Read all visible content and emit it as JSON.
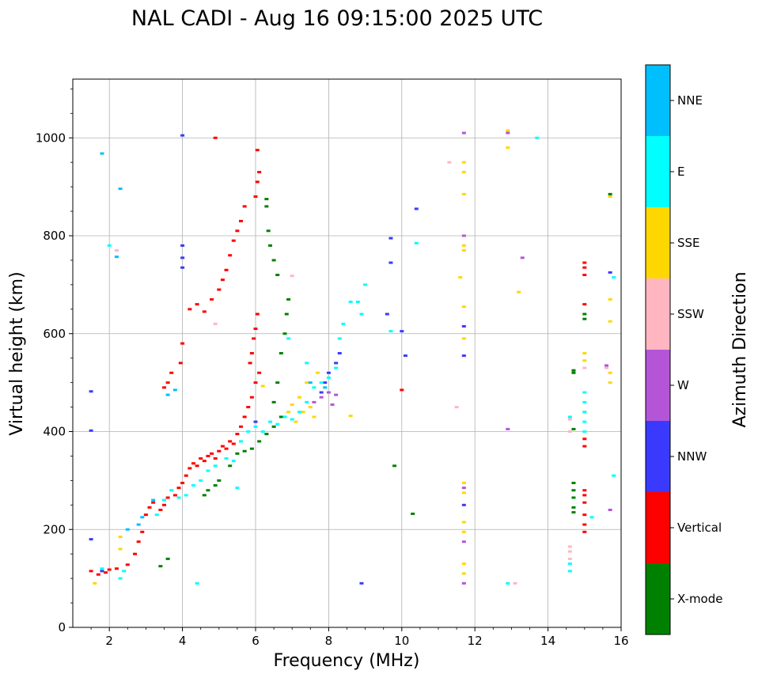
{
  "chart_data": {
    "type": "scatter",
    "title": "NAL CADI - Aug 16 09:15:00 2025 UTC",
    "xlabel": "Frequency (MHz)",
    "ylabel": "Virtual height (km)",
    "xlim": [
      1,
      16
    ],
    "ylim": [
      0,
      1120
    ],
    "xticks": [
      2,
      4,
      6,
      8,
      10,
      12,
      14,
      16
    ],
    "yticks": [
      0,
      200,
      400,
      600,
      800,
      1000
    ],
    "grid": true,
    "colorbar": {
      "title": "Azimuth Direction",
      "categories": [
        {
          "name": "X-mode",
          "color": "#008000"
        },
        {
          "name": "Vertical",
          "color": "#ff0000"
        },
        {
          "name": "NNW",
          "color": "#3a3aff"
        },
        {
          "name": "W",
          "color": "#b455d8"
        },
        {
          "name": "SSW",
          "color": "#ffb6c1"
        },
        {
          "name": "SSE",
          "color": "#ffd700"
        },
        {
          "name": "E",
          "color": "#00ffff"
        },
        {
          "name": "NNE",
          "color": "#00bfff"
        }
      ]
    },
    "series": [
      {
        "name": "Vertical",
        "points": [
          [
            1.5,
            115
          ],
          [
            1.7,
            108
          ],
          [
            1.9,
            112
          ],
          [
            2.0,
            118
          ],
          [
            2.2,
            120
          ],
          [
            2.5,
            128
          ],
          [
            2.7,
            150
          ],
          [
            2.8,
            175
          ],
          [
            2.9,
            195
          ],
          [
            3.0,
            230
          ],
          [
            3.1,
            245
          ],
          [
            3.2,
            255
          ],
          [
            3.4,
            240
          ],
          [
            3.5,
            250
          ],
          [
            3.6,
            265
          ],
          [
            3.8,
            270
          ],
          [
            3.9,
            285
          ],
          [
            4.0,
            295
          ],
          [
            4.1,
            310
          ],
          [
            4.2,
            325
          ],
          [
            4.3,
            335
          ],
          [
            4.4,
            330
          ],
          [
            4.5,
            345
          ],
          [
            4.6,
            340
          ],
          [
            4.7,
            350
          ],
          [
            4.8,
            355
          ],
          [
            4.9,
            345
          ],
          [
            5.0,
            360
          ],
          [
            5.1,
            370
          ],
          [
            5.2,
            365
          ],
          [
            5.3,
            380
          ],
          [
            5.4,
            375
          ],
          [
            5.5,
            395
          ],
          [
            5.6,
            410
          ],
          [
            5.7,
            430
          ],
          [
            5.8,
            450
          ],
          [
            5.9,
            470
          ],
          [
            6.0,
            500
          ],
          [
            6.1,
            520
          ],
          [
            5.85,
            540
          ],
          [
            5.9,
            560
          ],
          [
            5.95,
            590
          ],
          [
            6.0,
            610
          ],
          [
            6.05,
            640
          ],
          [
            4.2,
            650
          ],
          [
            4.4,
            660
          ],
          [
            4.6,
            645
          ],
          [
            4.8,
            670
          ],
          [
            5.0,
            690
          ],
          [
            5.1,
            710
          ],
          [
            5.2,
            730
          ],
          [
            5.3,
            760
          ],
          [
            5.4,
            790
          ],
          [
            5.5,
            810
          ],
          [
            5.6,
            830
          ],
          [
            5.7,
            860
          ],
          [
            6.0,
            880
          ],
          [
            6.05,
            910
          ],
          [
            6.1,
            930
          ],
          [
            4.0,
            580
          ],
          [
            3.95,
            540
          ],
          [
            3.7,
            520
          ],
          [
            3.6,
            500
          ],
          [
            3.5,
            490
          ],
          [
            15.0,
            735
          ],
          [
            15.0,
            745
          ],
          [
            15.0,
            720
          ],
          [
            15.0,
            370
          ],
          [
            15.0,
            385
          ],
          [
            15.0,
            280
          ],
          [
            15.0,
            270
          ],
          [
            15.0,
            255
          ],
          [
            15.0,
            230
          ],
          [
            15.0,
            210
          ],
          [
            15.0,
            195
          ],
          [
            15.0,
            660
          ],
          [
            10.0,
            485
          ],
          [
            4.9,
            1000
          ],
          [
            6.05,
            975
          ]
        ]
      },
      {
        "name": "X-mode",
        "points": [
          [
            3.4,
            125
          ],
          [
            3.6,
            140
          ],
          [
            4.6,
            270
          ],
          [
            4.7,
            280
          ],
          [
            4.9,
            290
          ],
          [
            5.0,
            300
          ],
          [
            5.3,
            330
          ],
          [
            5.5,
            355
          ],
          [
            5.7,
            360
          ],
          [
            5.9,
            365
          ],
          [
            6.1,
            380
          ],
          [
            6.3,
            395
          ],
          [
            6.5,
            410
          ],
          [
            6.7,
            430
          ],
          [
            6.5,
            460
          ],
          [
            6.6,
            500
          ],
          [
            6.7,
            560
          ],
          [
            6.8,
            600
          ],
          [
            6.85,
            640
          ],
          [
            6.9,
            670
          ],
          [
            6.6,
            720
          ],
          [
            6.5,
            750
          ],
          [
            6.4,
            780
          ],
          [
            6.35,
            810
          ],
          [
            6.3,
            860
          ],
          [
            6.3,
            875
          ],
          [
            14.7,
            295
          ],
          [
            14.7,
            280
          ],
          [
            14.7,
            265
          ],
          [
            14.7,
            245
          ],
          [
            14.7,
            235
          ],
          [
            14.7,
            525
          ],
          [
            14.7,
            520
          ],
          [
            14.7,
            405
          ],
          [
            15.0,
            640
          ],
          [
            15.0,
            630
          ],
          [
            15.7,
            885
          ],
          [
            9.8,
            330
          ],
          [
            10.3,
            232
          ]
        ]
      },
      {
        "name": "NNW",
        "points": [
          [
            1.5,
            482
          ],
          [
            1.5,
            402
          ],
          [
            1.5,
            180
          ],
          [
            1.8,
            115
          ],
          [
            4.0,
            755
          ],
          [
            4.0,
            735
          ],
          [
            4.0,
            780
          ],
          [
            4.0,
            1005
          ],
          [
            7.8,
            480
          ],
          [
            7.9,
            500
          ],
          [
            8.0,
            520
          ],
          [
            8.2,
            540
          ],
          [
            8.3,
            560
          ],
          [
            8.9,
            90
          ],
          [
            9.7,
            795
          ],
          [
            9.7,
            745
          ],
          [
            9.6,
            640
          ],
          [
            10.0,
            605
          ],
          [
            10.1,
            555
          ],
          [
            10.4,
            855
          ],
          [
            11.7,
            615
          ],
          [
            11.7,
            555
          ],
          [
            11.7,
            250
          ],
          [
            15.7,
            725
          ],
          [
            6.0,
            420
          ]
        ]
      },
      {
        "name": "W",
        "points": [
          [
            7.6,
            460
          ],
          [
            7.8,
            470
          ],
          [
            8.0,
            480
          ],
          [
            8.2,
            475
          ],
          [
            8.1,
            455
          ],
          [
            11.7,
            1010
          ],
          [
            11.7,
            800
          ],
          [
            11.7,
            285
          ],
          [
            11.7,
            175
          ],
          [
            11.7,
            90
          ],
          [
            12.9,
            1010
          ],
          [
            13.3,
            755
          ],
          [
            12.9,
            405
          ],
          [
            15.7,
            240
          ],
          [
            15.6,
            535
          ]
        ]
      },
      {
        "name": "SSW",
        "points": [
          [
            2.2,
            770
          ],
          [
            11.3,
            950
          ],
          [
            11.5,
            450
          ],
          [
            13.1,
            90
          ],
          [
            14.6,
            425
          ],
          [
            14.6,
            400
          ],
          [
            14.6,
            165
          ],
          [
            14.6,
            155
          ],
          [
            14.6,
            140
          ],
          [
            15.0,
            530
          ],
          [
            15.6,
            530
          ],
          [
            7.0,
            718
          ],
          [
            4.9,
            620
          ]
        ]
      },
      {
        "name": "SSE",
        "points": [
          [
            1.6,
            90
          ],
          [
            2.3,
            185
          ],
          [
            2.3,
            160
          ],
          [
            6.9,
            440
          ],
          [
            7.0,
            455
          ],
          [
            7.2,
            470
          ],
          [
            7.3,
            440
          ],
          [
            7.5,
            450
          ],
          [
            7.6,
            430
          ],
          [
            7.1,
            420
          ],
          [
            7.4,
            500
          ],
          [
            7.7,
            520
          ],
          [
            8.6,
            432
          ],
          [
            11.7,
            950
          ],
          [
            11.7,
            930
          ],
          [
            11.7,
            885
          ],
          [
            11.7,
            780
          ],
          [
            11.7,
            770
          ],
          [
            11.7,
            655
          ],
          [
            11.7,
            590
          ],
          [
            11.7,
            295
          ],
          [
            11.7,
            275
          ],
          [
            11.7,
            215
          ],
          [
            11.7,
            195
          ],
          [
            11.7,
            130
          ],
          [
            11.7,
            110
          ],
          [
            11.6,
            715
          ],
          [
            12.9,
            1015
          ],
          [
            12.9,
            980
          ],
          [
            13.2,
            685
          ],
          [
            15.0,
            560
          ],
          [
            15.0,
            545
          ],
          [
            15.0,
            440
          ],
          [
            15.7,
            880
          ],
          [
            15.7,
            670
          ],
          [
            15.7,
            625
          ],
          [
            15.7,
            520
          ],
          [
            15.7,
            500
          ],
          [
            6.2,
            493
          ]
        ]
      },
      {
        "name": "E",
        "points": [
          [
            1.8,
            120
          ],
          [
            2.3,
            100
          ],
          [
            2.4,
            115
          ],
          [
            3.3,
            230
          ],
          [
            3.5,
            260
          ],
          [
            3.7,
            280
          ],
          [
            3.9,
            265
          ],
          [
            4.1,
            270
          ],
          [
            4.3,
            290
          ],
          [
            4.5,
            300
          ],
          [
            4.7,
            320
          ],
          [
            4.9,
            330
          ],
          [
            5.2,
            345
          ],
          [
            5.4,
            340
          ],
          [
            5.6,
            380
          ],
          [
            5.8,
            400
          ],
          [
            6.0,
            410
          ],
          [
            6.2,
            400
          ],
          [
            6.4,
            420
          ],
          [
            6.6,
            415
          ],
          [
            6.8,
            430
          ],
          [
            7.0,
            425
          ],
          [
            7.2,
            440
          ],
          [
            7.4,
            460
          ],
          [
            7.6,
            490
          ],
          [
            7.8,
            500
          ],
          [
            8.0,
            510
          ],
          [
            8.2,
            530
          ],
          [
            8.3,
            590
          ],
          [
            8.4,
            620
          ],
          [
            8.6,
            665
          ],
          [
            8.8,
            665
          ],
          [
            8.9,
            640
          ],
          [
            9.0,
            700
          ],
          [
            9.7,
            605
          ],
          [
            10.4,
            785
          ],
          [
            13.7,
            1000
          ],
          [
            15.0,
            480
          ],
          [
            15.0,
            460
          ],
          [
            15.0,
            440
          ],
          [
            15.0,
            420
          ],
          [
            15.0,
            400
          ],
          [
            14.6,
            430
          ],
          [
            14.6,
            130
          ],
          [
            14.6,
            115
          ],
          [
            15.2,
            225
          ],
          [
            15.8,
            310
          ],
          [
            15.8,
            715
          ],
          [
            12.9,
            90
          ],
          [
            4.4,
            90
          ],
          [
            6.9,
            590
          ],
          [
            7.4,
            540
          ],
          [
            5.5,
            285
          ],
          [
            2.0,
            780
          ]
        ]
      },
      {
        "name": "NNE",
        "points": [
          [
            1.8,
            968
          ],
          [
            2.3,
            896
          ],
          [
            2.2,
            757
          ],
          [
            2.5,
            200
          ],
          [
            2.8,
            210
          ],
          [
            2.9,
            225
          ],
          [
            3.2,
            260
          ],
          [
            3.8,
            485
          ],
          [
            3.6,
            475
          ],
          [
            7.5,
            500
          ],
          [
            7.9,
            490
          ]
        ]
      }
    ]
  }
}
